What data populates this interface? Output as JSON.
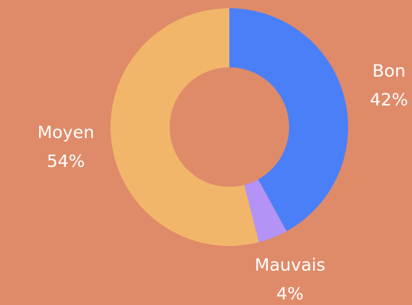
{
  "chart_data": {
    "type": "donut",
    "categories": [
      "Bon",
      "Mauvais",
      "Moyen"
    ],
    "values": [
      42,
      4,
      54
    ],
    "value_labels": [
      "42%",
      "4%",
      "54%"
    ],
    "colors": [
      "#4b7ff8",
      "#b493f6",
      "#f2b66a"
    ]
  }
}
